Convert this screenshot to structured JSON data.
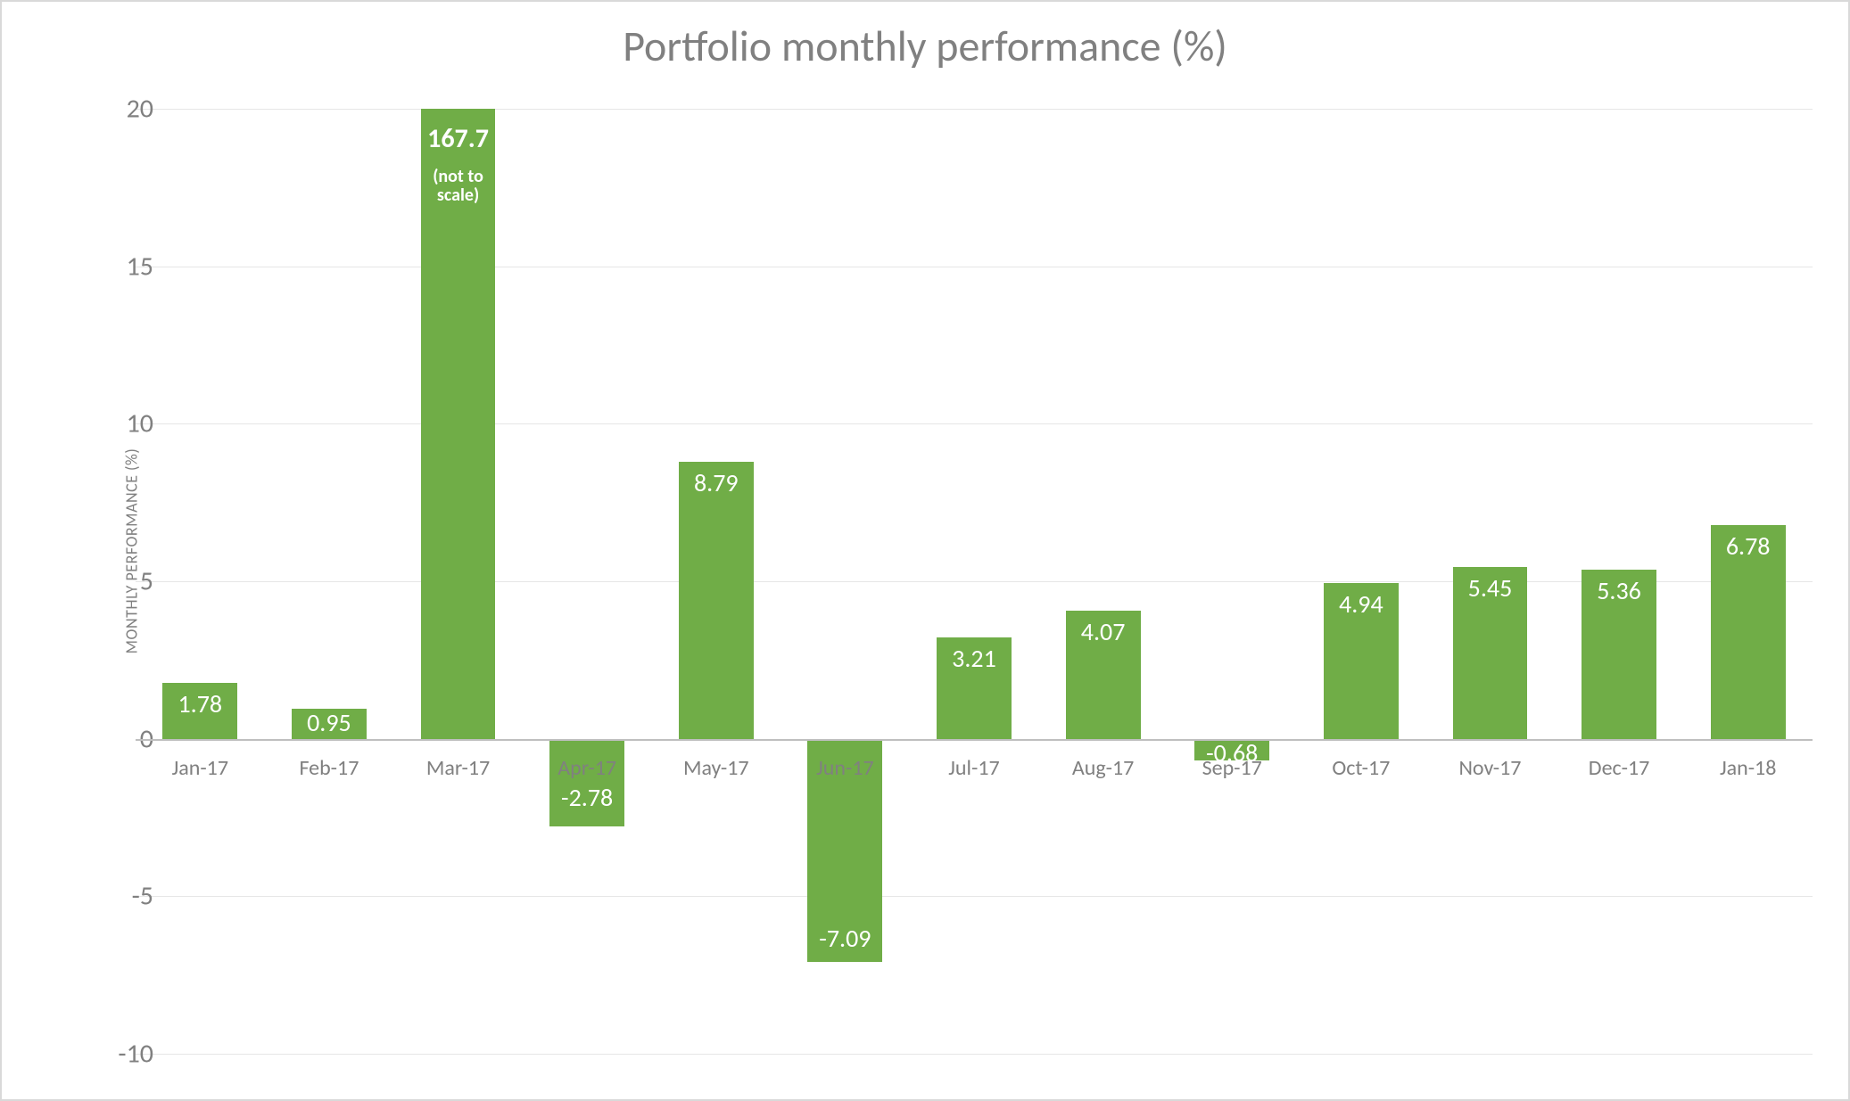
{
  "chart": {
    "type": "bar",
    "title": "Portfolio monthly performance (%)",
    "title_fontsize": 48,
    "title_color": "#808080",
    "ylabel": "MONTHLY PERFORMANCE (%)",
    "ylabel_fontsize": 18,
    "ylabel_color": "#808080",
    "background_color": "#ffffff",
    "border_color": "#d9d9d9",
    "grid_color": "#e6e6e6",
    "baseline_color": "#bfbfbf",
    "bar_color": "#70ad47",
    "value_label_color": "#ffffff",
    "value_label_fontsize": 28,
    "x_label_color": "#808080",
    "x_label_fontsize": 24,
    "y_tick_color": "#808080",
    "y_tick_fontsize": 30,
    "ylim": [
      -10,
      20
    ],
    "yticks": [
      -10,
      -5,
      0,
      5,
      10,
      15,
      20
    ],
    "bar_width_ratio": 0.58,
    "categories": [
      "Jan-17",
      "Feb-17",
      "Mar-17",
      "Apr-17",
      "May-17",
      "Jun-17",
      "Jul-17",
      "Aug-17",
      "Sep-17",
      "Oct-17",
      "Nov-17",
      "Dec-17",
      "Jan-18"
    ],
    "values": [
      1.78,
      0.95,
      20.0,
      -2.78,
      8.79,
      -7.09,
      3.21,
      4.07,
      -0.68,
      4.94,
      5.45,
      5.36,
      6.78
    ],
    "display_labels": [
      "1.78",
      "0.95",
      null,
      "-2.78",
      "8.79",
      "-7.09",
      "3.21",
      "4.07",
      "-0.68",
      "4.94",
      "5.45",
      "5.36",
      "6.78"
    ],
    "special_annotations": {
      "2": {
        "value_text": "167.7",
        "note": "(not to\nscale)",
        "cap_at_ymax": true
      }
    }
  }
}
